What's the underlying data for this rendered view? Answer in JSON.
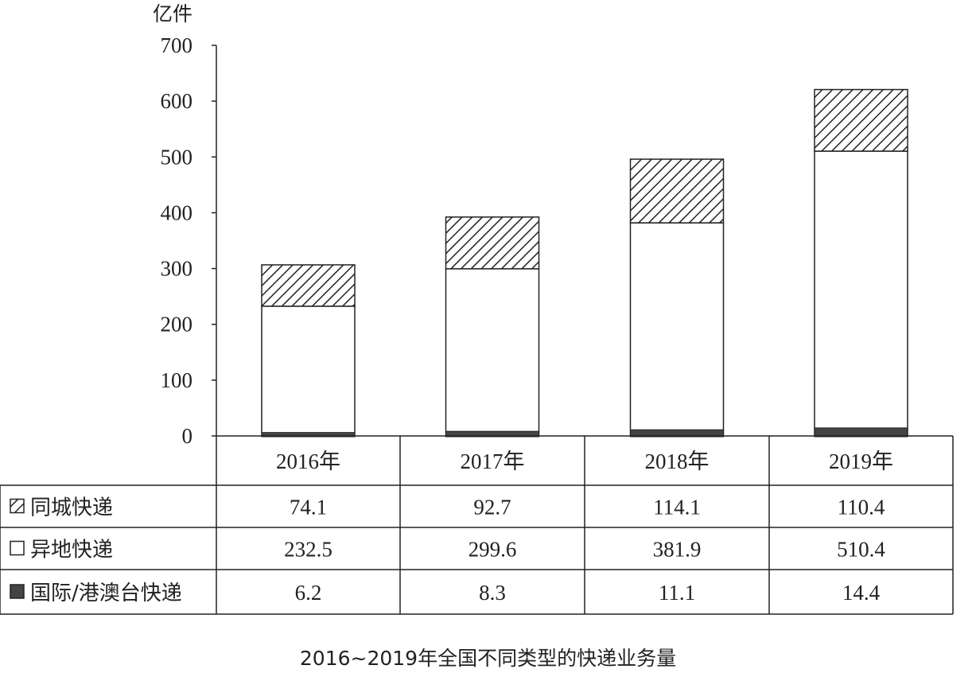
{
  "chart_data": {
    "type": "bar",
    "stacked": true,
    "title": "2016~2019年全国不同类型的快递业务量",
    "ylabel": "亿件",
    "xlabel": "",
    "ylim": [
      0,
      700
    ],
    "yticks": [
      0,
      100,
      200,
      300,
      400,
      500,
      600,
      700
    ],
    "grid": false,
    "legend": "table-left",
    "categories": [
      "2016年",
      "2017年",
      "2018年",
      "2019年"
    ],
    "series": [
      {
        "name": "同城快递",
        "pattern": "hatched",
        "values": [
          74.1,
          92.7,
          114.1,
          110.4
        ],
        "labels": [
          "74.1",
          "92.7",
          "114.1",
          "110.4"
        ]
      },
      {
        "name": "异地快递",
        "pattern": "white",
        "values": [
          232.5,
          299.6,
          381.9,
          510.4
        ],
        "labels": [
          "232.5",
          "299.6",
          "381.9",
          "510.4"
        ]
      },
      {
        "name": "国际/港澳台快递",
        "pattern": "dark",
        "color": "#444444",
        "values": [
          6.2,
          8.3,
          11.1,
          14.4
        ],
        "labels": [
          "6.2",
          "8.3",
          "11.1",
          "14.4"
        ]
      }
    ]
  }
}
